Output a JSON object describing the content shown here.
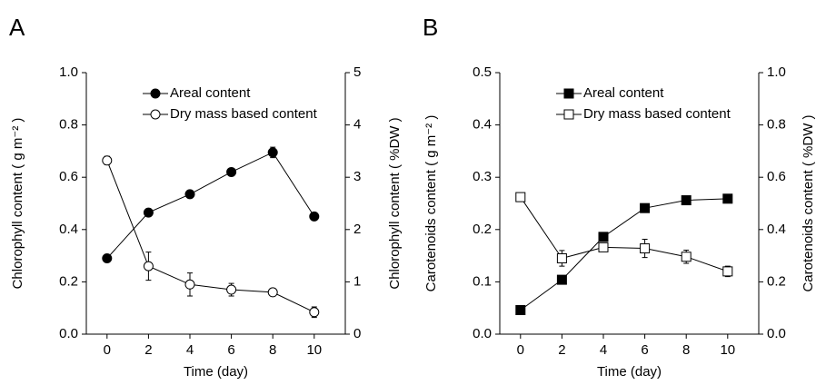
{
  "chart_data": [
    {
      "type": "line",
      "panel": "A",
      "xlabel": "Time (day)",
      "ylabel": "Chlorophyll content ( g m⁻² )",
      "y2label": "Chlorophyll content ( %DW )",
      "x": [
        0,
        2,
        4,
        6,
        8,
        10
      ],
      "xlim": [
        -1,
        11.5
      ],
      "xticks": [
        0,
        2,
        4,
        6,
        8,
        10
      ],
      "ylim": [
        0,
        1
      ],
      "yticks": [
        {
          "value": 0,
          "label": "0.0"
        },
        0.2,
        0.4,
        0.6,
        0.8,
        {
          "value": 1,
          "label": "1.0"
        }
      ],
      "y2lim": [
        0,
        5
      ],
      "y2ticks": [
        0,
        1,
        2,
        3,
        4,
        5
      ],
      "legend": "upper right",
      "series": [
        {
          "name": "Areal content",
          "color": "#000000",
          "marker": "circle",
          "filled": true,
          "values": [
            0.29,
            0.465,
            0.535,
            0.62,
            0.695,
            0.45
          ],
          "errors": [
            0.008,
            0.008,
            0.008,
            0.012,
            0.02,
            0.008
          ]
        },
        {
          "name": "Dry mass based content",
          "color": "#000000",
          "marker": "circle",
          "filled": false,
          "axis": "y2",
          "values": [
            3.32,
            1.3,
            0.95,
            0.85,
            0.8,
            0.42
          ],
          "errors": [
            0.08,
            0.27,
            0.22,
            0.12,
            0.03,
            0.1
          ]
        }
      ]
    },
    {
      "type": "line",
      "panel": "B",
      "xlabel": "Time (day)",
      "ylabel": "Carotenoids content ( g m⁻² )",
      "y2label": "Carotenoids content ( %DW )",
      "x": [
        0,
        2,
        4,
        6,
        8,
        10
      ],
      "xlim": [
        -1,
        11.5
      ],
      "xticks": [
        0,
        2,
        4,
        6,
        8,
        10
      ],
      "ylim": [
        0,
        0.5
      ],
      "yticks": [
        {
          "value": 0,
          "label": "0.0"
        },
        0.1,
        0.2,
        0.3,
        0.4,
        0.5
      ],
      "y2lim": [
        0,
        1
      ],
      "y2ticks": [
        {
          "value": 0,
          "label": "0.0"
        },
        0.2,
        0.4,
        0.6,
        0.8,
        {
          "value": 1,
          "label": "1.0"
        }
      ],
      "legend": "upper right",
      "series": [
        {
          "name": "Areal content",
          "color": "#000000",
          "marker": "square",
          "filled": true,
          "values": [
            0.046,
            0.104,
            0.186,
            0.241,
            0.256,
            0.259
          ],
          "errors": [
            0.003,
            0.003,
            0.003,
            0.004,
            0.005,
            0.003
          ]
        },
        {
          "name": "Dry mass based content",
          "color": "#000000",
          "marker": "square",
          "filled": false,
          "axis": "y2",
          "values": [
            0.524,
            0.29,
            0.332,
            0.328,
            0.296,
            0.24
          ],
          "errors": [
            0.012,
            0.03,
            0.015,
            0.035,
            0.025,
            0.02
          ]
        }
      ]
    }
  ]
}
